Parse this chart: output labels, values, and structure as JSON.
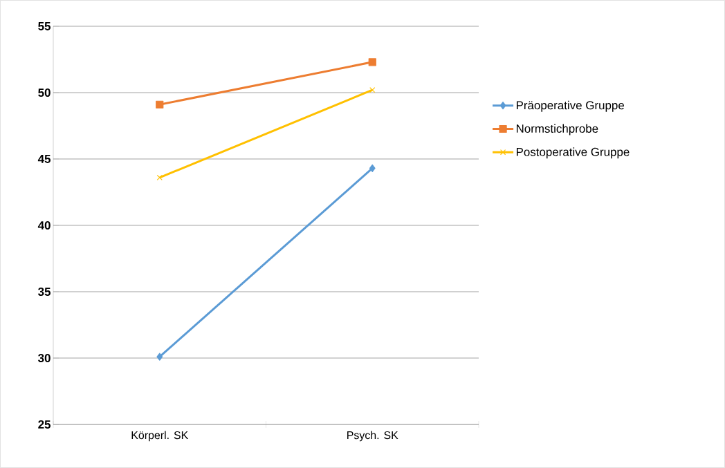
{
  "chart_data": {
    "type": "line",
    "categories": [
      "Körperl. SK",
      "Psych. SK"
    ],
    "series": [
      {
        "name": "Präoperative Gruppe",
        "color": "#5b9bd5",
        "values": [
          30.1,
          44.3
        ],
        "marker": "diamond"
      },
      {
        "name": "Normstichprobe",
        "color": "#ed7d31",
        "values": [
          49.1,
          52.3
        ],
        "marker": "square"
      },
      {
        "name": "Postoperative Gruppe",
        "color": "#ffc000",
        "values": [
          43.6,
          50.2
        ],
        "marker": "cross"
      }
    ],
    "ylim": [
      25,
      55
    ],
    "yticks": [
      25,
      30,
      35,
      40,
      45,
      50,
      55
    ],
    "grid": "y",
    "legend": "right",
    "line_style": "solid"
  }
}
